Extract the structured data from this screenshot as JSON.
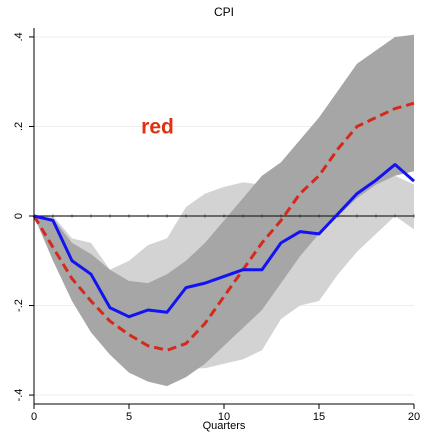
{
  "chart_data": {
    "type": "line",
    "title": "CPI",
    "xlabel": "Quarters",
    "ylabel": "",
    "xlim": [
      0,
      20
    ],
    "ylim": [
      -0.42,
      0.42
    ],
    "x_ticks": [
      0,
      5,
      10,
      15,
      20
    ],
    "x_tick_labels": [
      "0",
      "5",
      "10",
      "15",
      "20"
    ],
    "y_ticks": [
      -0.4,
      -0.2,
      0,
      0.2,
      0.4
    ],
    "y_tick_labels": [
      "-.4",
      "-.2",
      "0",
      ".2",
      ".4"
    ],
    "grid": true,
    "zero_line": 0,
    "annotations": [
      {
        "text": "red",
        "x": 6.5,
        "y": 0.2,
        "color": "#e03010"
      }
    ],
    "x": [
      0,
      1,
      2,
      3,
      4,
      5,
      6,
      7,
      8,
      9,
      10,
      11,
      12,
      13,
      14,
      15,
      16,
      17,
      18,
      19,
      20
    ],
    "series": [
      {
        "style": "dashed",
        "color": "#d42a1e",
        "values": [
          0,
          -0.07,
          -0.14,
          -0.19,
          -0.235,
          -0.265,
          -0.29,
          -0.3,
          -0.285,
          -0.24,
          -0.18,
          -0.12,
          -0.06,
          -0.01,
          0.05,
          0.09,
          0.15,
          0.2,
          0.22,
          0.24,
          0.252
        ]
      },
      {
        "style": "solid",
        "color": "#1212f2",
        "values": [
          0,
          -0.01,
          -0.1,
          -0.13,
          -0.205,
          -0.225,
          -0.21,
          -0.215,
          -0.16,
          -0.15,
          -0.135,
          -0.12,
          -0.12,
          -0.06,
          -0.035,
          -0.04,
          0.005,
          0.05,
          0.08,
          0.115,
          0.078
        ]
      }
    ],
    "bands": [
      {
        "color": "#d3d3d3",
        "upper": [
          0,
          0,
          -0.05,
          -0.06,
          -0.12,
          -0.1,
          -0.065,
          -0.05,
          0.02,
          0.05,
          0.065,
          0.075,
          0.07,
          0.12,
          0.13,
          0.15,
          0.16,
          0.14,
          0.12,
          0.09,
          0.07
        ],
        "lower": [
          0,
          -0.04,
          -0.15,
          -0.2,
          -0.27,
          -0.31,
          -0.33,
          -0.33,
          -0.34,
          -0.34,
          -0.33,
          -0.32,
          -0.3,
          -0.23,
          -0.2,
          -0.19,
          -0.13,
          -0.08,
          -0.04,
          0.0,
          -0.03
        ]
      },
      {
        "color": "#a6a6a6",
        "upper": [
          0,
          -0.005,
          -0.06,
          -0.085,
          -0.12,
          -0.145,
          -0.15,
          -0.13,
          -0.1,
          -0.06,
          -0.01,
          0.04,
          0.09,
          0.12,
          0.17,
          0.22,
          0.28,
          0.34,
          0.37,
          0.4,
          0.405
        ],
        "lower": [
          0,
          -0.1,
          -0.19,
          -0.26,
          -0.31,
          -0.35,
          -0.37,
          -0.38,
          -0.36,
          -0.33,
          -0.29,
          -0.25,
          -0.21,
          -0.15,
          -0.09,
          -0.04,
          0.0,
          0.04,
          0.07,
          0.09,
          0.1
        ]
      }
    ]
  }
}
